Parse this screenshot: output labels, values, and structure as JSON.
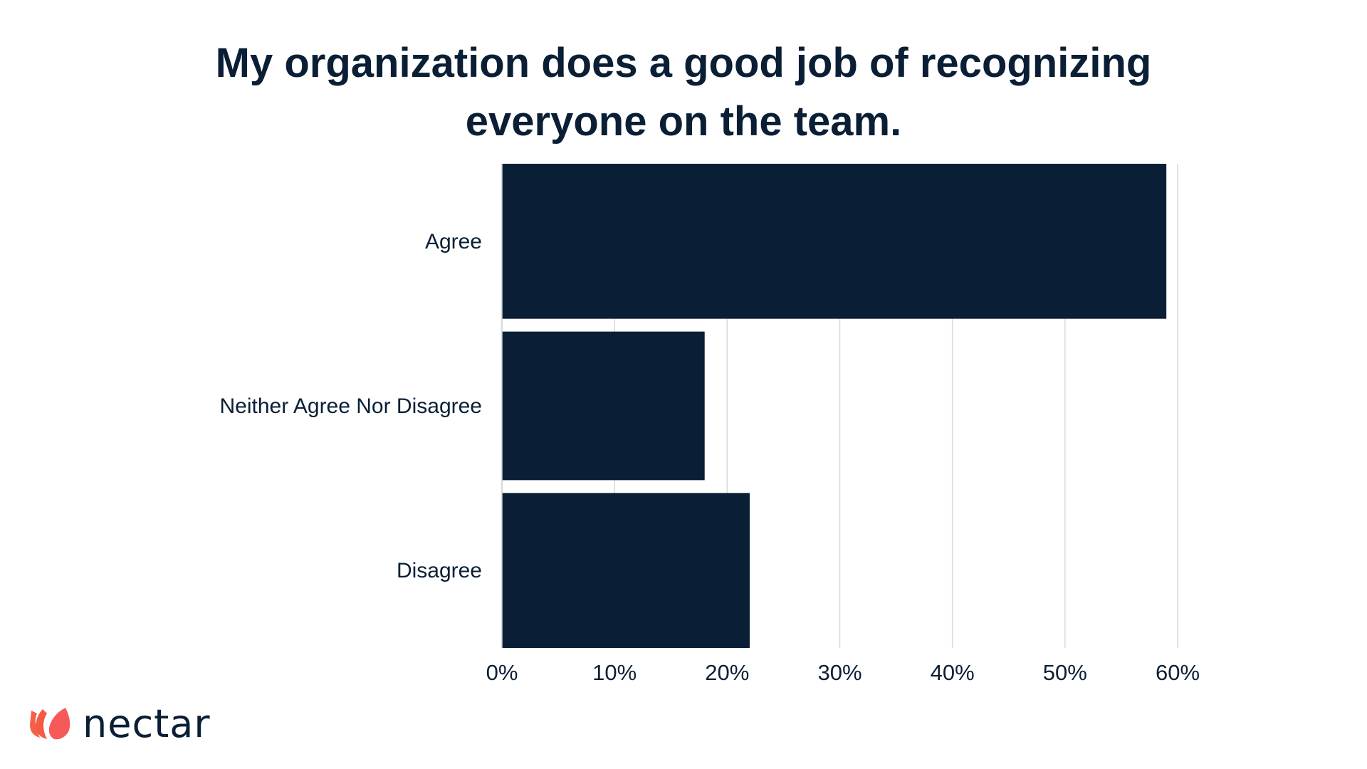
{
  "chart_data": {
    "type": "bar",
    "orientation": "horizontal",
    "title": [
      "My organization does a good job of recognizing",
      "everyone on the team."
    ],
    "categories": [
      "Agree",
      "Neither Agree Nor Disagree",
      "Disagree"
    ],
    "values": [
      59,
      18,
      22
    ],
    "xlim": [
      0,
      60
    ],
    "xticks": [
      "0%",
      "10%",
      "20%",
      "30%",
      "40%",
      "50%",
      "60%"
    ],
    "xtick_values": [
      0,
      10,
      20,
      30,
      40,
      50,
      60
    ],
    "grid": "vertical",
    "bar_color": "#0a1f35",
    "grid_color": "#d9d9d9"
  },
  "brand": {
    "name": "nectar",
    "logo_color": "#f4604a"
  }
}
